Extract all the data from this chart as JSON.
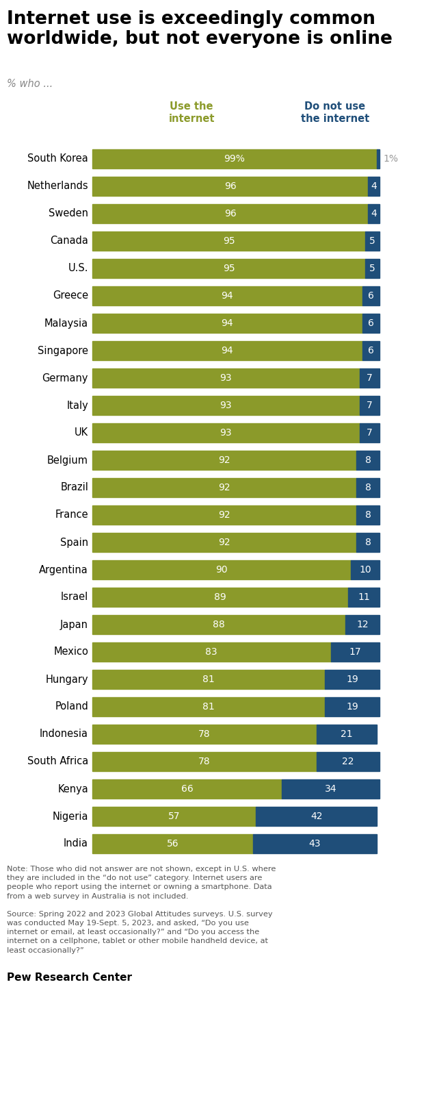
{
  "title": "Internet use is exceedingly common\nworldwide, but not everyone is online",
  "subtitle": "% who ...",
  "col1_header": "Use the\ninternet",
  "col2_header": "Do not use\nthe internet",
  "countries": [
    "South Korea",
    "Netherlands",
    "Sweden",
    "Canada",
    "U.S.",
    "Greece",
    "Malaysia",
    "Singapore",
    "Germany",
    "Italy",
    "UK",
    "Belgium",
    "Brazil",
    "France",
    "Spain",
    "Argentina",
    "Israel",
    "Japan",
    "Mexico",
    "Hungary",
    "Poland",
    "Indonesia",
    "South Africa",
    "Kenya",
    "Nigeria",
    "India"
  ],
  "use": [
    99,
    96,
    96,
    95,
    95,
    94,
    94,
    94,
    93,
    93,
    93,
    92,
    92,
    92,
    92,
    90,
    89,
    88,
    83,
    81,
    81,
    78,
    78,
    66,
    57,
    56
  ],
  "no_use": [
    1,
    4,
    4,
    5,
    5,
    6,
    6,
    6,
    7,
    7,
    7,
    8,
    8,
    8,
    8,
    10,
    11,
    12,
    17,
    19,
    19,
    21,
    22,
    34,
    42,
    43
  ],
  "use_labels": [
    "99%",
    "96",
    "96",
    "95",
    "95",
    "94",
    "94",
    "94",
    "93",
    "93",
    "93",
    "92",
    "92",
    "92",
    "92",
    "90",
    "89",
    "88",
    "83",
    "81",
    "81",
    "78",
    "78",
    "66",
    "57",
    "56"
  ],
  "no_use_labels": [
    "1%",
    "4",
    "4",
    "5",
    "5",
    "6",
    "6",
    "6",
    "7",
    "7",
    "7",
    "8",
    "8",
    "8",
    "8",
    "10",
    "11",
    "12",
    "17",
    "19",
    "19",
    "21",
    "22",
    "34",
    "42",
    "43"
  ],
  "use_color": "#8B9A2A",
  "no_use_color": "#1F4E79",
  "use_header_color": "#8B9A2A",
  "no_use_header_color": "#1F4E79",
  "title_color": "#000000",
  "subtitle_color": "#888888",
  "note_text1": "Note: Those who did not answer are not shown, except in U.S. where\nthey are included in the “do not use” category. Internet users are\npeople who report using the internet or owning a smartphone. Data\nfrom a web survey in Australia is not included.",
  "note_text2": "Source: Spring 2022 and 2023 Global Attitudes surveys. U.S. survey\nwas conducted May 19-Sept. 5, 2023, and asked, “Do you use\ninternet or email, at least occasionally?” and “Do you access the\ninternet on a cellphone, tablet or other mobile handheld device, at\nleast occasionally?”",
  "footer": "Pew Research Center"
}
